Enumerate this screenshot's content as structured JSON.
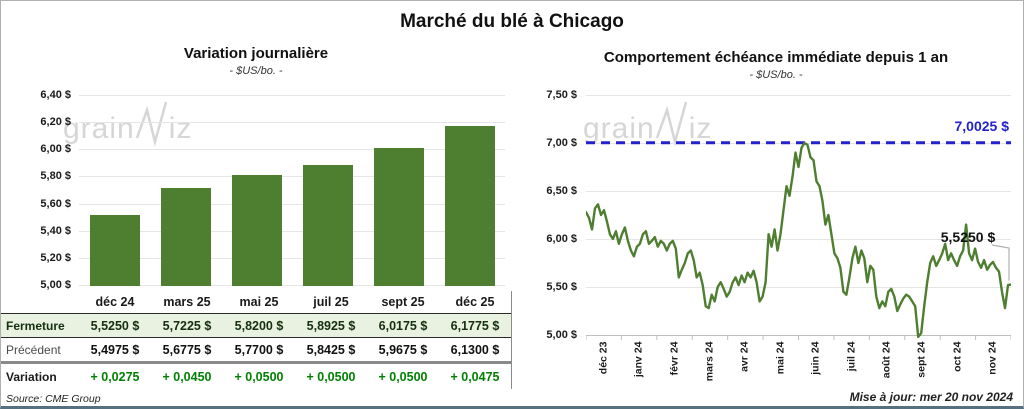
{
  "page": {
    "title": "Marché du blé à Chicago",
    "source": "Source: CME Group",
    "updated": "Mise à jour: mer 20 nov 2024",
    "watermark": {
      "part1": "grain",
      "part2": "iz"
    }
  },
  "colors": {
    "bar_green": "#4e7e30",
    "line_green": "#4e7e30",
    "reference_blue": "#2222cc",
    "close_row_bg": "#e9f1e1",
    "variation_green": "#008000",
    "gridline": "#e5e5e5",
    "axis": "#bfbfbf",
    "watermark": "#d6d6d6"
  },
  "table": {
    "columns": [
      "déc 24",
      "mars 25",
      "mai 25",
      "juil 25",
      "sept 25",
      "déc 25"
    ],
    "rows": [
      {
        "label": "Fermeture",
        "style": "close",
        "values": [
          "5,5250 $",
          "5,7225 $",
          "5,8200 $",
          "5,8925 $",
          "6,0175 $",
          "6,1775 $"
        ]
      },
      {
        "label": "Précédent",
        "style": "previous",
        "values": [
          "5,4975 $",
          "5,6775 $",
          "5,7700 $",
          "5,8425 $",
          "5,9675 $",
          "6,1300 $"
        ]
      },
      {
        "label": "Variation",
        "style": "variation",
        "values": [
          "+ 0,0275",
          "+ 0,0450",
          "+ 0,0500",
          "+ 0,0500",
          "+ 0,0500",
          "+ 0,0475"
        ]
      }
    ]
  },
  "chart_data": [
    {
      "type": "bar",
      "title": "Variation journalière",
      "subtitle": "- $US/bo. -",
      "categories": [
        "déc 24",
        "mars 25",
        "mai 25",
        "juil 25",
        "sept 25",
        "déc 25"
      ],
      "values": [
        5.525,
        5.7225,
        5.82,
        5.8925,
        6.0175,
        6.1775
      ],
      "ylabel": "$US/bo.",
      "ylim": [
        5.0,
        6.4
      ],
      "grid": true,
      "y_tick_labels": [
        "6,40 $",
        "6,20 $",
        "6,00 $",
        "5,80 $",
        "5,60 $",
        "5,40 $",
        "5,20 $",
        "5,00 $"
      ],
      "bar_color": "#4e7e30"
    },
    {
      "type": "line",
      "title": "Comportement échéance immédiate depuis 1 an",
      "subtitle": "- $US/bo. -",
      "ylabel": "$US/bo.",
      "ylim": [
        5.0,
        7.5
      ],
      "grid": true,
      "legend": "none",
      "y_tick_labels": [
        "7,50 $",
        "7,00 $",
        "6,50 $",
        "6,00 $",
        "5,50 $",
        "5,00 $"
      ],
      "x_tick_labels": [
        "déc 23",
        "janv 24",
        "févr 24",
        "mars 24",
        "avr 24",
        "mai 24",
        "juin 24",
        "juil 24",
        "août 24",
        "sept 24",
        "oct 24",
        "nov 24"
      ],
      "reference_line": {
        "value": 7.0025,
        "label": "7,0025 $",
        "color": "#2222cc",
        "style": "dashed"
      },
      "last_point_label": "5,5250 $",
      "last_value": 5.525,
      "line_color": "#4e7e30",
      "values": [
        6.28,
        6.22,
        6.1,
        6.32,
        6.36,
        6.25,
        6.3,
        6.18,
        6.05,
        6.0,
        6.08,
        5.95,
        6.05,
        6.12,
        5.98,
        5.88,
        5.82,
        5.92,
        5.95,
        6.05,
        6.08,
        5.95,
        5.98,
        6.02,
        5.92,
        5.98,
        5.95,
        5.88,
        5.95,
        5.98,
        5.9,
        5.6,
        5.68,
        5.75,
        5.85,
        5.88,
        5.78,
        5.6,
        5.65,
        5.52,
        5.3,
        5.28,
        5.42,
        5.35,
        5.5,
        5.55,
        5.48,
        5.4,
        5.45,
        5.55,
        5.6,
        5.52,
        5.62,
        5.55,
        5.65,
        5.6,
        5.67,
        5.55,
        5.35,
        5.4,
        5.55,
        6.05,
        5.92,
        6.1,
        5.88,
        6.05,
        6.3,
        6.55,
        6.45,
        6.65,
        6.9,
        6.75,
        6.95,
        7.0,
        6.98,
        6.85,
        6.82,
        6.6,
        6.55,
        6.4,
        6.15,
        6.25,
        6.05,
        5.85,
        5.8,
        5.7,
        5.45,
        5.42,
        5.6,
        5.8,
        5.92,
        5.75,
        5.88,
        5.8,
        5.55,
        5.72,
        5.68,
        5.4,
        5.28,
        5.35,
        5.3,
        5.45,
        5.48,
        5.4,
        5.25,
        5.32,
        5.38,
        5.42,
        5.4,
        5.35,
        5.3,
        4.98,
        5.02,
        5.3,
        5.55,
        5.75,
        5.82,
        5.72,
        5.78,
        5.85,
        5.95,
        5.78,
        5.85,
        5.78,
        5.72,
        5.82,
        5.88,
        6.15,
        5.85,
        5.78,
        5.9,
        5.76,
        5.7,
        5.78,
        5.68,
        5.73,
        5.76,
        5.7,
        5.66,
        5.45,
        5.28,
        5.52,
        5.525
      ]
    }
  ]
}
